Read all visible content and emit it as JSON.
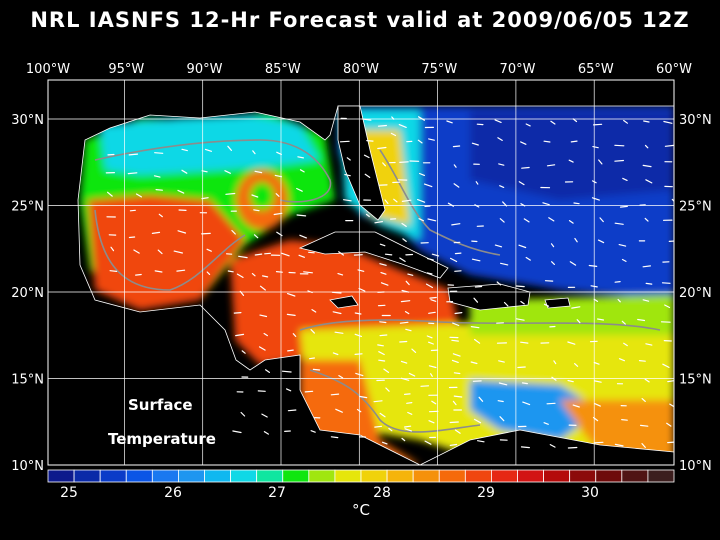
{
  "title": "NRL IASNFS  12-Hr Forecast valid at 2009/06/05 12Z",
  "lon_labels": [
    "100°W",
    "95°W",
    "90°W",
    "85°W",
    "80°W",
    "75°W",
    "70°W",
    "65°W",
    "60°W"
  ],
  "lat_labels": [
    "30°N",
    "25°N",
    "20°N",
    "15°N",
    "10°N"
  ],
  "map_label_line1": "Surface",
  "map_label_line2": "Temperature",
  "colorbar": {
    "ticks": [
      "25",
      "26",
      "27",
      "28",
      "29",
      "30"
    ],
    "unit": "°C",
    "colors": [
      "#0d1a8c",
      "#0a2aa8",
      "#0a3cc8",
      "#0a55e6",
      "#1a78f0",
      "#1e96f0",
      "#10b8f0",
      "#10d8e6",
      "#10e6a0",
      "#10e610",
      "#a0e610",
      "#e6e60a",
      "#f0d20a",
      "#f5b40a",
      "#f5910a",
      "#f56a0a",
      "#f04610",
      "#e62814",
      "#d21414",
      "#b40a0a",
      "#8c0a0a",
      "#6e0a0a",
      "#501414",
      "#3c1e1e"
    ]
  },
  "colors": {
    "background": "#000000",
    "land": "#000000",
    "grid": "#ffffff",
    "isobath": "#8c8c8c",
    "coast": "#ffffff"
  }
}
